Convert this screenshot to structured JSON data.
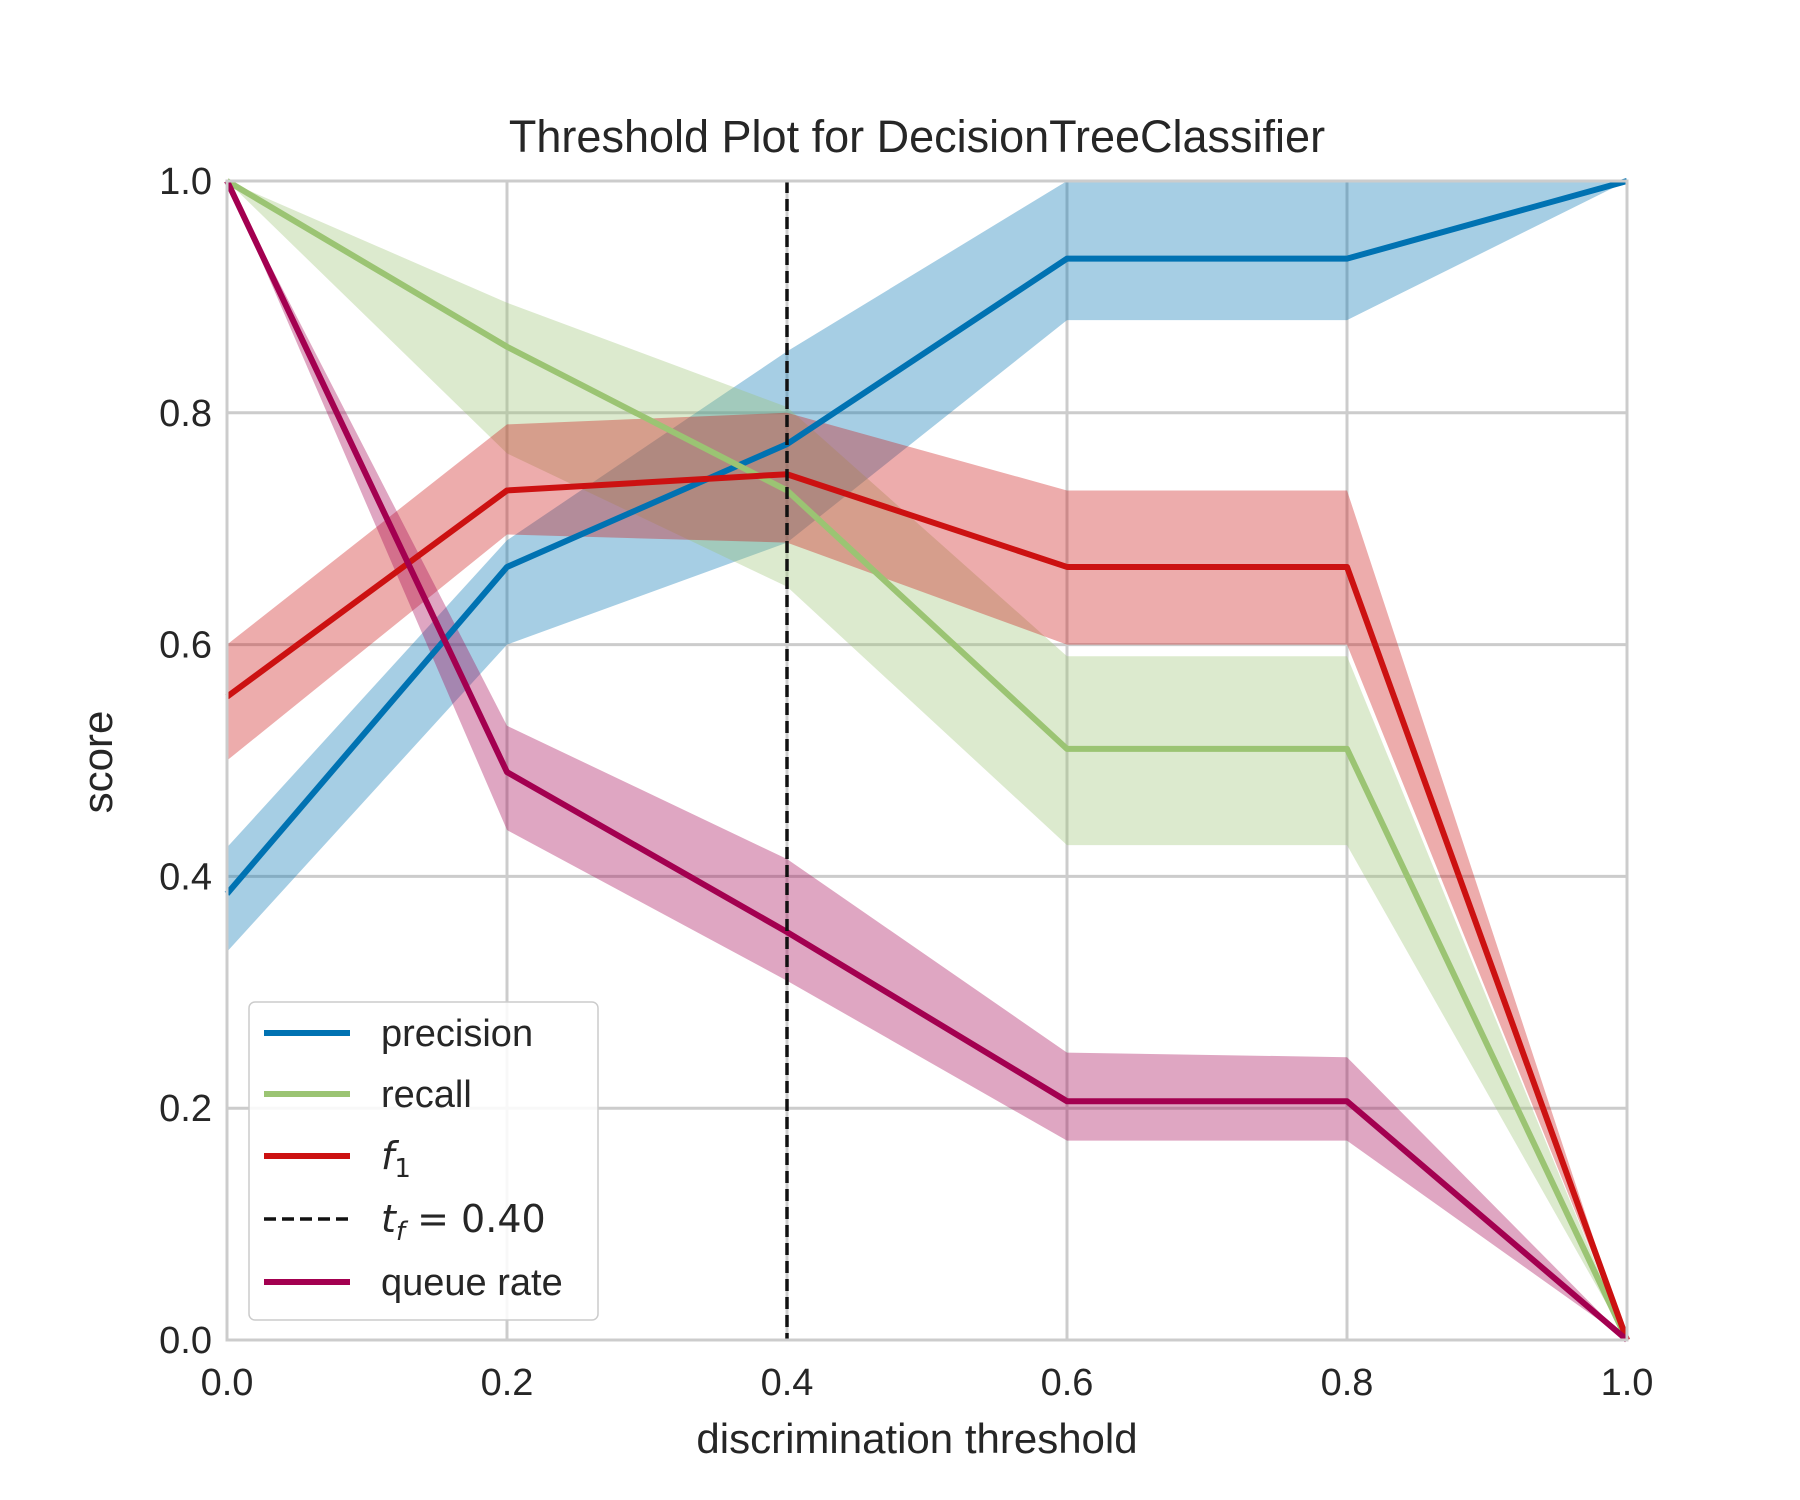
{
  "chart_data": {
    "type": "line",
    "title": "Threshold Plot for DecisionTreeClassifier",
    "xlabel": "discrimination threshold",
    "ylabel": "score",
    "xlim": [
      0,
      1
    ],
    "ylim": [
      0,
      1
    ],
    "grid": true,
    "legend_position": "lower-left",
    "x": [
      0.0,
      0.2,
      0.4,
      0.6,
      0.8,
      1.0
    ],
    "x_ticks": [
      "0.0",
      "0.2",
      "0.4",
      "0.6",
      "0.8",
      "1.0"
    ],
    "y_ticks": [
      "0.0",
      "0.2",
      "0.4",
      "0.6",
      "0.8",
      "1.0"
    ],
    "series": [
      {
        "name": "precision",
        "color": "#0072b2",
        "values": [
          0.385,
          0.667,
          0.773,
          0.933,
          0.933,
          1.0
        ],
        "band_lower": [
          0.335,
          0.6,
          0.688,
          0.88,
          0.88,
          1.0
        ],
        "band_upper": [
          0.425,
          0.69,
          0.853,
          1.0,
          1.0,
          1.0
        ]
      },
      {
        "name": "recall",
        "color": "#9bc473",
        "values": [
          1.0,
          0.857,
          0.733,
          0.51,
          0.51,
          0.0
        ],
        "band_lower": [
          1.0,
          0.765,
          0.65,
          0.427,
          0.427,
          0.0
        ],
        "band_upper": [
          1.0,
          0.895,
          0.805,
          0.59,
          0.59,
          0.0
        ]
      },
      {
        "name": "f1",
        "label_main": "f",
        "label_sub": "1",
        "color": "#cc1111",
        "values": [
          0.555,
          0.733,
          0.747,
          0.667,
          0.667,
          0.0
        ],
        "band_lower": [
          0.5,
          0.695,
          0.688,
          0.6,
          0.6,
          0.0
        ],
        "band_upper": [
          0.6,
          0.79,
          0.8,
          0.733,
          0.733,
          0.0
        ]
      },
      {
        "name": "queue rate",
        "color": "#a30050",
        "values": [
          1.0,
          0.49,
          0.352,
          0.206,
          0.206,
          0.0
        ],
        "band_lower": [
          1.0,
          0.44,
          0.31,
          0.172,
          0.172,
          0.0
        ],
        "band_upper": [
          1.0,
          0.53,
          0.415,
          0.248,
          0.244,
          0.0
        ]
      }
    ],
    "threshold": {
      "value": 0.4,
      "label_main": "t",
      "label_sub": "f",
      "label_rest": " = 0.40"
    }
  }
}
